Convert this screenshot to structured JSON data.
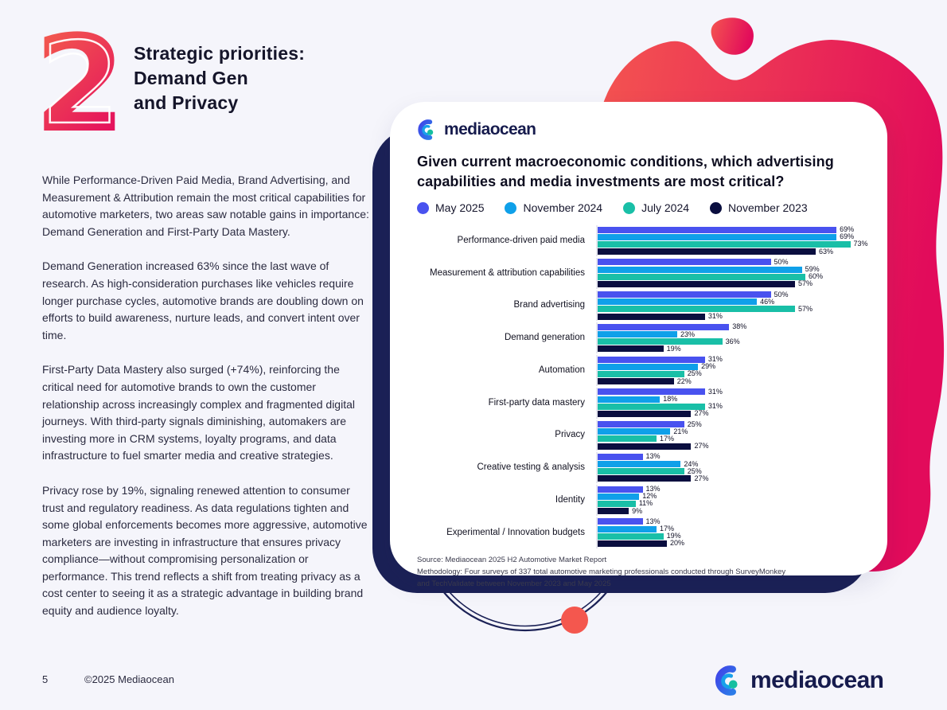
{
  "page": {
    "background": "#F5F5FB",
    "section_number": "2",
    "title_lines": [
      "Strategic priorities:",
      "Demand Gen",
      "and Privacy"
    ],
    "paragraphs": [
      "While Performance-Driven Paid Media, Brand Advertising, and Measurement & Attribution remain the most critical capabilities for automotive marketers, two areas saw notable gains in importance: Demand Generation and First-Party Data Mastery.",
      "Demand Generation increased 63% since the last wave of research. As high-consideration purchases like vehicles require longer purchase cycles, automotive brands are doubling down on efforts to build awareness, nurture leads, and convert intent over time.",
      "First-Party Data Mastery also surged (+74%), reinforcing the critical need for automotive brands to own the customer relationship across increasingly complex and fragmented digital journeys. With third-party signals diminishing, automakers are investing more in CRM systems, loyalty programs, and data infrastructure to fuel smarter media and creative strategies.",
      "Privacy rose by 19%, signaling renewed attention to consumer trust and regulatory readiness. As data regulations tighten and some global enforcements becomes more aggressive, automotive marketers are investing in infrastructure that ensures privacy compliance—without compromising personalization or performance. This trend reflects a shift from treating privacy as a cost center to seeing it as a strategic advantage in building brand equity and audience loyalty."
    ],
    "footer": {
      "page_number": "5",
      "copyright": "©2025 Mediaocean"
    }
  },
  "brand": {
    "name": "mediaocean",
    "wordmark_color": "#161B4D",
    "icon_blue": "#3D4FE4",
    "icon_light_blue": "#18A0EA",
    "icon_teal": "#16BFA0"
  },
  "card": {
    "question_lines": [
      "Given current macroeconomic conditions, which advertising",
      "capabilities and media investments are most critical?"
    ],
    "source_lines": [
      "Source: Mediaocean 2025 H2 Automotive Market Report",
      "Methodology: Four surveys of 337 total automotive marketing professionals conducted through SurveyMonkey",
      "and TechValidate between November 2023 and May 2025"
    ]
  },
  "chart_data": {
    "type": "bar",
    "orientation": "horizontal",
    "title": "Given current macroeconomic conditions, which advertising capabilities and media investments are most critical?",
    "legend_position": "top",
    "value_suffix": "%",
    "xmax": 80,
    "categories": [
      "Performance-driven paid media",
      "Measurement & attribution capabilities",
      "Brand advertising",
      "Demand generation",
      "Automation",
      "First-party data mastery",
      "Privacy",
      "Creative testing & analysis",
      "Identity",
      "Experimental / Innovation budgets"
    ],
    "series": [
      {
        "name": "May 2025",
        "color": "#4952EF",
        "values": [
          69,
          50,
          50,
          38,
          31,
          31,
          25,
          13,
          13,
          13
        ]
      },
      {
        "name": "November 2024",
        "color": "#0FA0E9",
        "values": [
          69,
          59,
          46,
          23,
          29,
          18,
          21,
          24,
          12,
          17
        ]
      },
      {
        "name": "July 2024",
        "color": "#19BFA7",
        "values": [
          73,
          60,
          57,
          36,
          25,
          31,
          17,
          25,
          11,
          19
        ]
      },
      {
        "name": "November 2023",
        "color": "#0A0E3F",
        "values": [
          63,
          57,
          31,
          19,
          22,
          27,
          27,
          27,
          9,
          20
        ]
      }
    ]
  },
  "decor": {
    "navy": "#1B2156",
    "blob_gradient_start": "#F45550",
    "blob_gradient_end": "#E20B5B",
    "dot_red": "#F4574E"
  }
}
